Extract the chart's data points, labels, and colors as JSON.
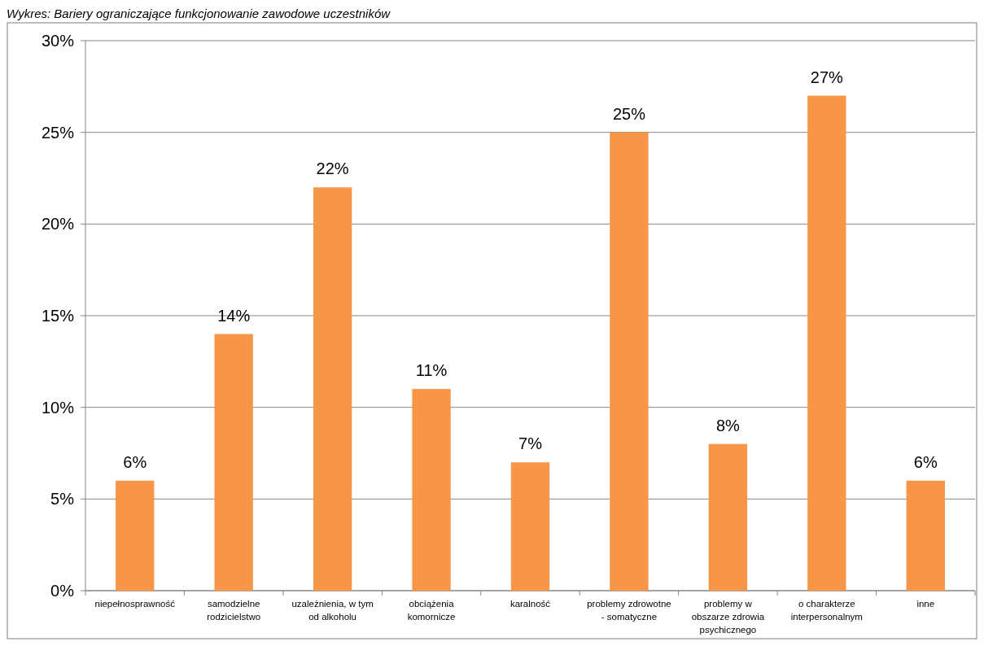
{
  "chart_data": {
    "type": "bar",
    "title": "Wykres: Bariery ograniczające funkcjonowanie zawodowe uczestników",
    "categories": [
      "niepełnosprawność",
      "samodzielne\nrodzicielstwo",
      "uzależnienia, w tym\nod alkoholu",
      "obciążenia\nkomornicze",
      "karalność",
      "problemy zdrowotne\n- somatyczne",
      "problemy w\nobszarze zdrowia\npsychicznego",
      "o charakterze\ninterpersonalnym",
      "inne"
    ],
    "values": [
      6,
      14,
      22,
      11,
      7,
      25,
      8,
      27,
      6
    ],
    "color": "#f79646",
    "ylim": [
      0,
      30
    ],
    "yticks": [
      {
        "value": 0,
        "label": "0%"
      },
      {
        "value": 5,
        "label": "5%"
      },
      {
        "value": 10,
        "label": "10%"
      },
      {
        "value": 15,
        "label": "15%"
      },
      {
        "value": 20,
        "label": "20%"
      },
      {
        "value": 25,
        "label": "25%"
      },
      {
        "value": 30,
        "label": "30%"
      }
    ],
    "value_labels": [
      "6%",
      "14%",
      "22%",
      "11%",
      "7%",
      "25%",
      "8%",
      "27%",
      "6%"
    ],
    "grid": "y"
  }
}
